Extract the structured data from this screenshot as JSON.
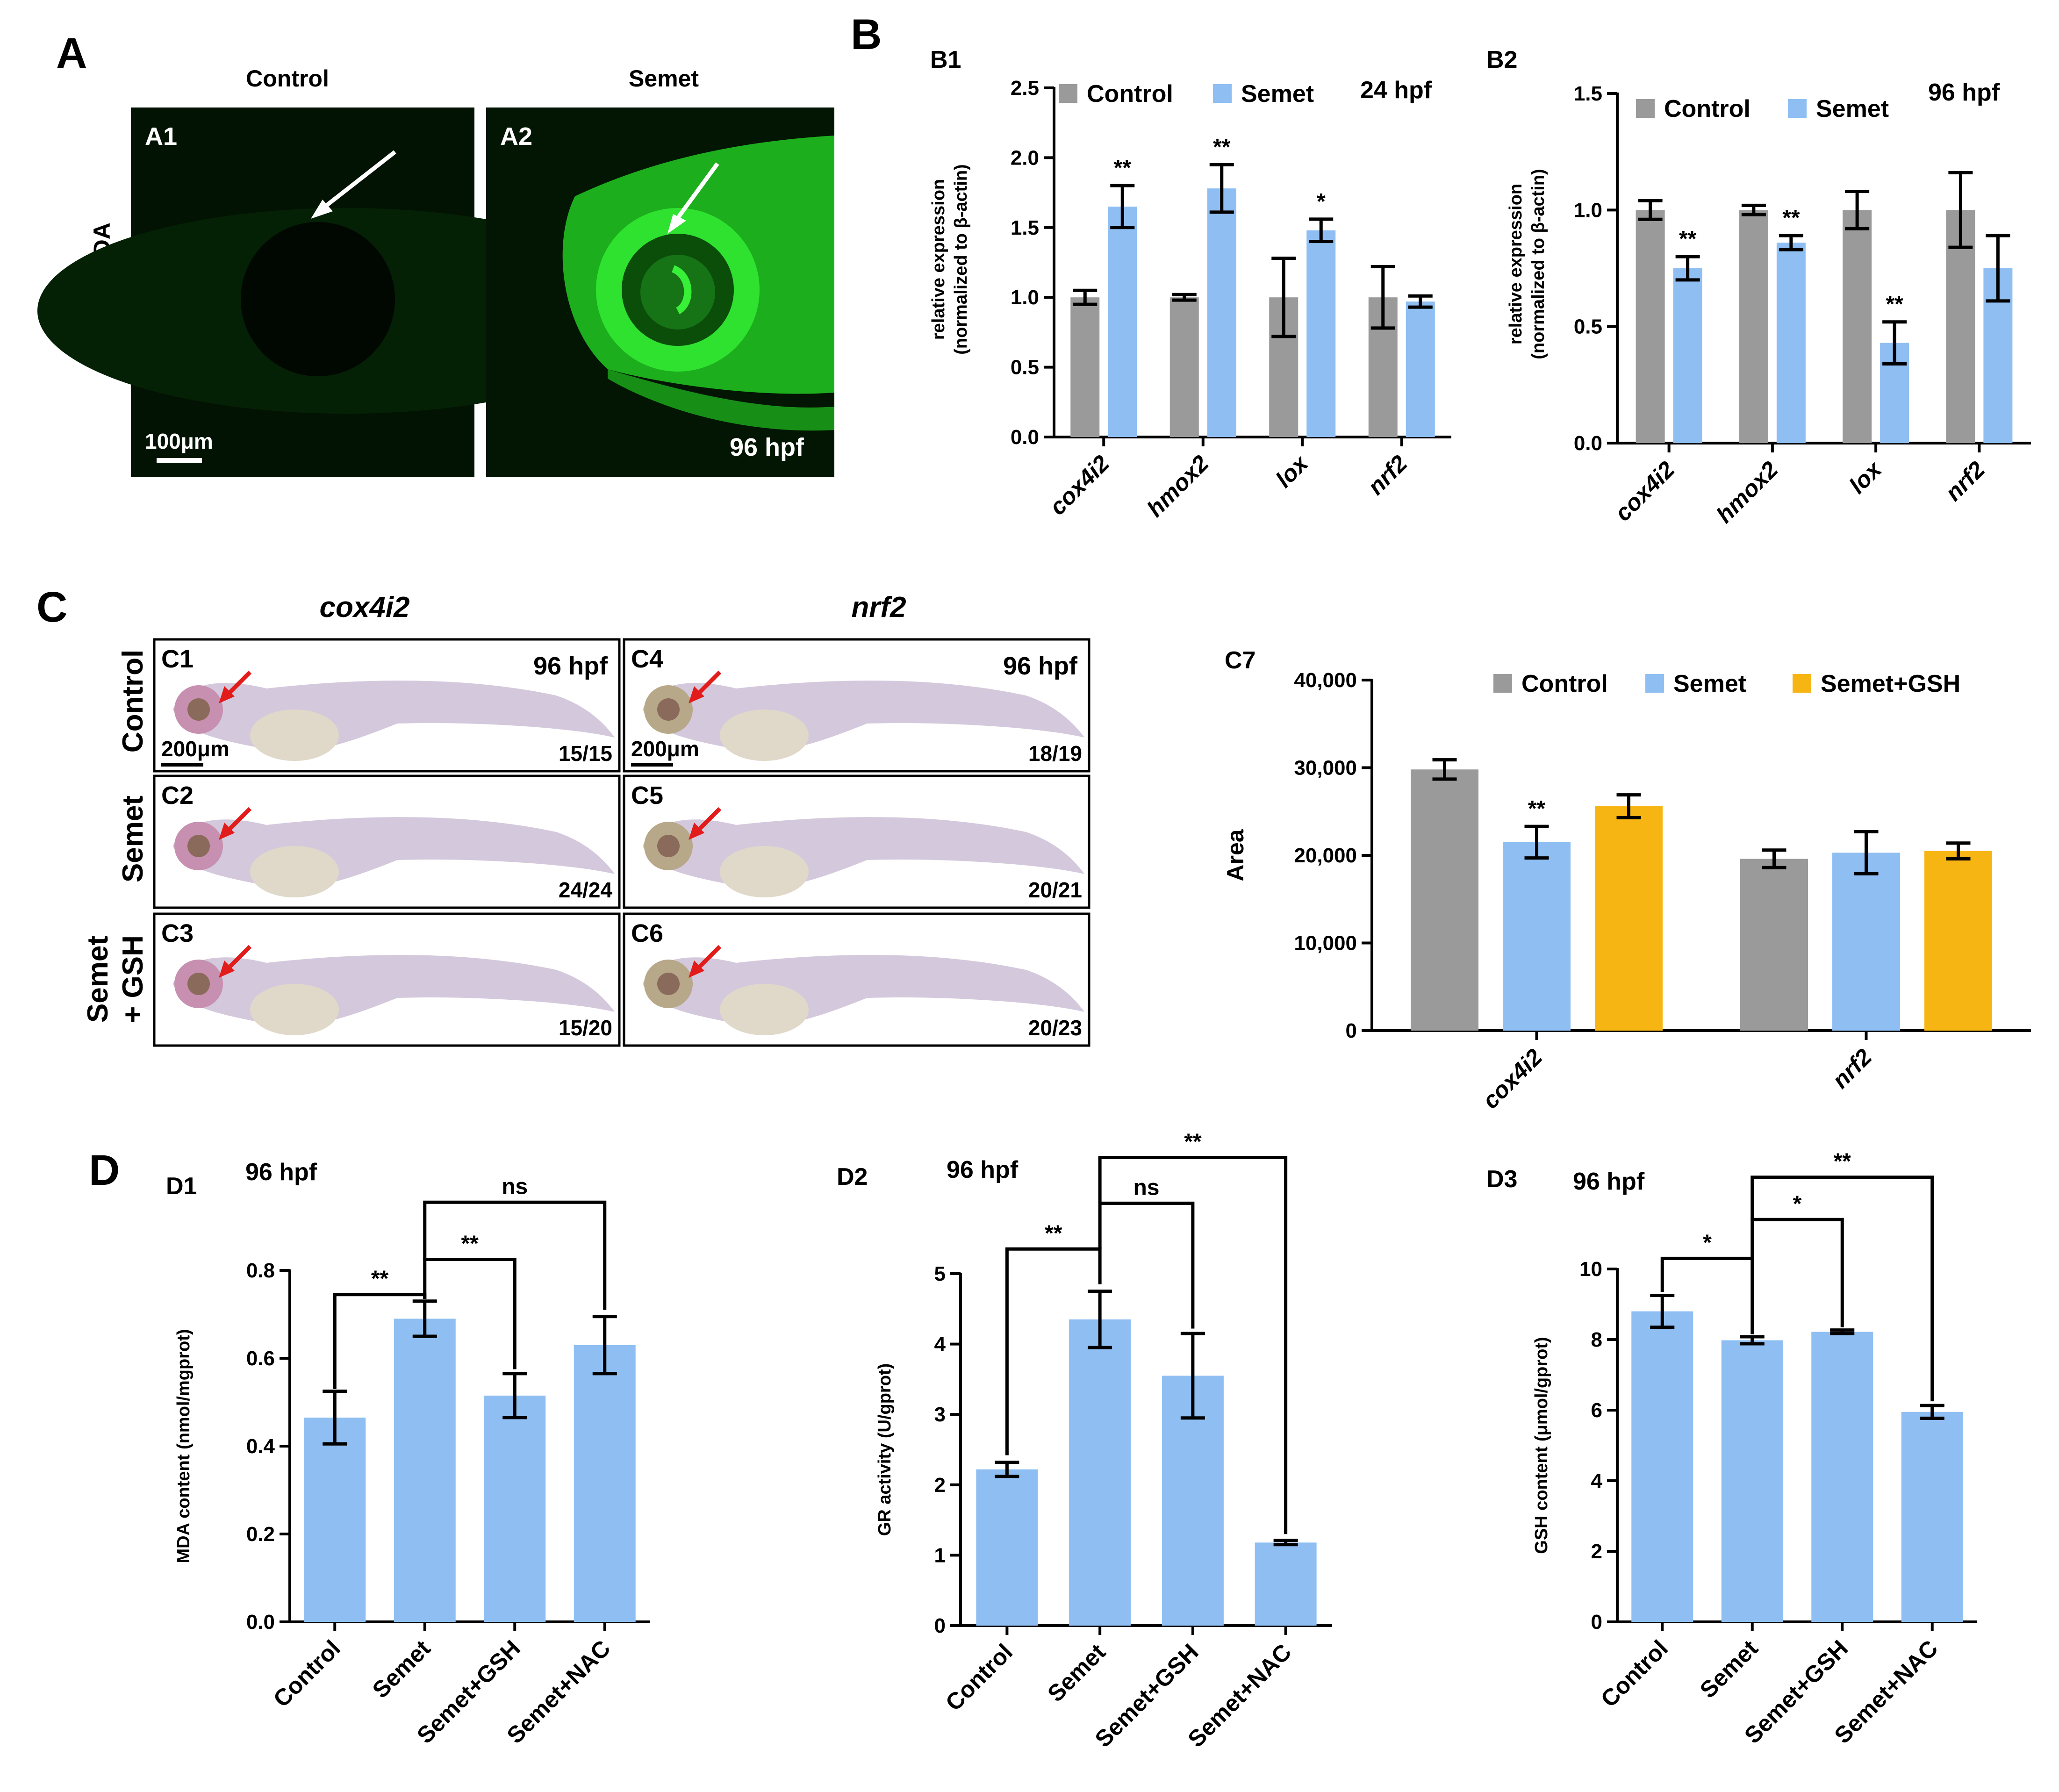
{
  "colors": {
    "control": "#9a9a9b",
    "semet": "#8fbff2",
    "semet_gsh": "#f7b514",
    "fluor": "#1fd11f",
    "arrow_red": "#e21b1b"
  },
  "panelA": {
    "letter": "A",
    "col_titles": [
      "Control",
      "Semet"
    ],
    "row_label": "DCFH-DA",
    "img1_label": "A1",
    "img2_label": "A2",
    "scale_bar": "100μm",
    "stage": "96 hpf",
    "arrow_icon": "white-arrow-icon"
  },
  "panelB": {
    "letter": "B",
    "legend": [
      "Control",
      "Semet"
    ],
    "ylabel_line1": "relative expression",
    "ylabel_line2": "(normalized to β-actin)"
  },
  "panelC": {
    "letter": "C",
    "gene_titles": [
      "cox4i2",
      "nrf2"
    ],
    "row_labels": [
      "Control",
      "Semet",
      "Semet",
      "+ GSH"
    ],
    "stage": "96 hpf",
    "scale_bar": "200μm",
    "images": [
      {
        "id": "C1",
        "ratio": "15/15",
        "stage": true,
        "scale": true
      },
      {
        "id": "C2",
        "ratio": "24/24",
        "stage": false,
        "scale": false
      },
      {
        "id": "C3",
        "ratio": "15/20",
        "stage": false,
        "scale": false
      },
      {
        "id": "C4",
        "ratio": "18/19",
        "stage": true,
        "scale": true
      },
      {
        "id": "C5",
        "ratio": "20/21",
        "stage": false,
        "scale": false
      },
      {
        "id": "C6",
        "ratio": "20/23",
        "stage": false,
        "scale": false
      }
    ]
  },
  "panelD": {
    "letter": "D"
  },
  "chart_data": [
    {
      "id": "B1",
      "type": "bar",
      "stage": "24 hpf",
      "categories": [
        "cox4i2",
        "hmox2",
        "lox",
        "nrf2"
      ],
      "ylabel": "relative expression (normalized to β-actin)",
      "ylim": [
        0,
        2.5
      ],
      "yticks": [
        "0.0",
        "0.5",
        "1.0",
        "1.5",
        "2.0",
        "2.5"
      ],
      "series": [
        {
          "name": "Control",
          "values": [
            1.0,
            1.0,
            1.0,
            1.0
          ],
          "err": [
            0.05,
            0.02,
            0.28,
            0.22
          ]
        },
        {
          "name": "Semet",
          "values": [
            1.65,
            1.78,
            1.48,
            0.97
          ],
          "err": [
            0.15,
            0.17,
            0.08,
            0.04
          ]
        }
      ],
      "significance": [
        {
          "category": "cox4i2",
          "mark": "**"
        },
        {
          "category": "hmox2",
          "mark": "**"
        },
        {
          "category": "lox",
          "mark": "*"
        }
      ]
    },
    {
      "id": "B2",
      "type": "bar",
      "stage": "96 hpf",
      "categories": [
        "cox4i2",
        "hmox2",
        "lox",
        "nrf2"
      ],
      "ylabel": "relative expression (normalized to β-actin)",
      "ylim": [
        0,
        1.5
      ],
      "yticks": [
        "0.0",
        "0.5",
        "1.0",
        "1.5"
      ],
      "series": [
        {
          "name": "Control",
          "values": [
            1.0,
            1.0,
            1.0,
            1.0
          ],
          "err": [
            0.04,
            0.02,
            0.08,
            0.16
          ]
        },
        {
          "name": "Semet",
          "values": [
            0.75,
            0.86,
            0.43,
            0.75
          ],
          "err": [
            0.05,
            0.03,
            0.09,
            0.14
          ]
        }
      ],
      "significance": [
        {
          "category": "cox4i2",
          "mark": "**"
        },
        {
          "category": "hmox2",
          "mark": "**"
        },
        {
          "category": "lox",
          "mark": "**"
        }
      ]
    },
    {
      "id": "C7",
      "type": "bar",
      "categories": [
        "cox4i2",
        "nrf2"
      ],
      "ylabel": "Area",
      "ylim": [
        0,
        40000
      ],
      "yticks": [
        "0",
        "10,000",
        "20,000",
        "30,000",
        "40,000"
      ],
      "series": [
        {
          "name": "Control",
          "values": [
            29800,
            19600
          ],
          "err": [
            1100,
            1000
          ]
        },
        {
          "name": "Semet",
          "values": [
            21500,
            20300
          ],
          "err": [
            1800,
            2400
          ]
        },
        {
          "name": "Semet+GSH",
          "values": [
            25600,
            20500
          ],
          "err": [
            1300,
            900
          ]
        }
      ],
      "significance": [
        {
          "category": "cox4i2",
          "series": "Semet",
          "mark": "**"
        }
      ]
    },
    {
      "id": "D1",
      "type": "bar",
      "stage": "96 hpf",
      "categories": [
        "Control",
        "Semet",
        "Semet+GSH",
        "Semet+NAC"
      ],
      "ylabel": "MDA content (nmol/mgprot)",
      "ylim": [
        0,
        0.8
      ],
      "yticks": [
        "0.0",
        "0.2",
        "0.4",
        "0.6",
        "0.8"
      ],
      "values": [
        0.465,
        0.69,
        0.515,
        0.63
      ],
      "err": [
        0.06,
        0.04,
        0.05,
        0.065
      ],
      "brackets": [
        {
          "from": 0,
          "to": 1,
          "mark": "**",
          "y": 0.745,
          "endY": [
            0.53,
            0.735
          ]
        },
        {
          "from": 1,
          "to": 2,
          "mark": "**",
          "y": 0.825,
          "endY": [
            0.735,
            0.575
          ]
        },
        {
          "from": 1,
          "to": 3,
          "mark": "ns",
          "y": 0.955,
          "endY": [
            0.825,
            0.71
          ]
        }
      ]
    },
    {
      "id": "D2",
      "type": "bar",
      "stage": "96 hpf",
      "categories": [
        "Control",
        "Semet",
        "Semet+GSH",
        "Semet+NAC"
      ],
      "ylabel": "GR activity (U/gprot)",
      "ylim": [
        0,
        5
      ],
      "yticks": [
        "0",
        "1",
        "2",
        "3",
        "4",
        "5"
      ],
      "values": [
        2.22,
        4.35,
        3.55,
        1.18
      ],
      "err": [
        0.1,
        0.4,
        0.6,
        0.03
      ],
      "brackets": [
        {
          "from": 0,
          "to": 1,
          "mark": "**",
          "y": 5.35,
          "endY": [
            2.42,
            4.85
          ]
        },
        {
          "from": 1,
          "to": 2,
          "mark": "ns",
          "y": 6.0,
          "endY": [
            5.35,
            4.22
          ]
        },
        {
          "from": 1,
          "to": 3,
          "mark": "**",
          "y": 6.65,
          "endY": [
            6.0,
            1.3
          ]
        }
      ]
    },
    {
      "id": "D3",
      "type": "bar",
      "stage": "96 hpf",
      "categories": [
        "Control",
        "Semet",
        "Semet+GSH",
        "Semet+NAC"
      ],
      "ylabel": "GSH content (μmol/gprot)",
      "ylim": [
        0,
        10
      ],
      "yticks": [
        "0",
        "2",
        "4",
        "6",
        "8",
        "10"
      ],
      "values": [
        8.8,
        7.98,
        8.22,
        5.95
      ],
      "err": [
        0.45,
        0.1,
        0.05,
        0.18
      ],
      "brackets": [
        {
          "from": 0,
          "to": 1,
          "mark": "*",
          "y": 10.3,
          "endY": [
            9.35,
            8.15
          ]
        },
        {
          "from": 1,
          "to": 2,
          "mark": "*",
          "y": 11.4,
          "endY": [
            10.3,
            8.35
          ]
        },
        {
          "from": 1,
          "to": 3,
          "mark": "**",
          "y": 12.6,
          "endY": [
            11.4,
            6.25
          ]
        }
      ]
    }
  ]
}
